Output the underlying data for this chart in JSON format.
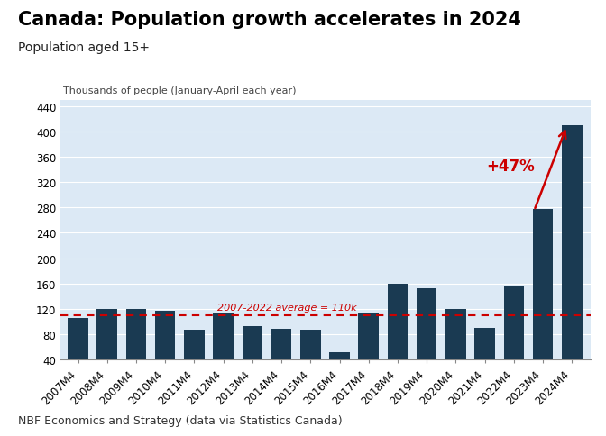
{
  "title": "Canada: Population growth accelerates in 2024",
  "subtitle": "Population aged 15+",
  "ylabel_inner": "Thousands of people (January-April each year)",
  "footer": "NBF Economics and Strategy (data via Statistics Canada)",
  "categories": [
    "2007M4",
    "2008M4",
    "2009M4",
    "2010M4",
    "2011M4",
    "2012M4",
    "2013M4",
    "2014M4",
    "2015M4",
    "2016M4",
    "2017M4",
    "2018M4",
    "2019M4",
    "2020M4",
    "2021M4",
    "2022M4",
    "2023M4",
    "2024M4"
  ],
  "values": [
    105,
    120,
    120,
    117,
    87,
    113,
    93,
    88,
    87,
    52,
    113,
    160,
    153,
    120,
    90,
    155,
    278,
    410
  ],
  "bar_color": "#1a3a52",
  "average_value": 110,
  "average_label": "2007-2022 average = 110k",
  "average_color": "#cc0000",
  "arrow_annotation": "+47%",
  "arrow_color": "#cc0000",
  "ylim": [
    40,
    450
  ],
  "yticks": [
    40,
    80,
    120,
    160,
    200,
    240,
    280,
    320,
    360,
    400,
    440
  ],
  "plot_bg_color": "#dce9f5",
  "fig_bg_color": "#ffffff",
  "title_fontsize": 15,
  "subtitle_fontsize": 10,
  "tick_fontsize": 8.5,
  "footer_fontsize": 9,
  "inner_label_fontsize": 8
}
